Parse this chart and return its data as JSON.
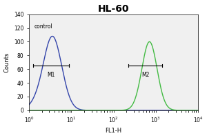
{
  "title": "HL-60",
  "xlabel": "FL1-H",
  "ylabel": "Counts",
  "ylim": [
    0,
    140
  ],
  "yticks": [
    0,
    20,
    40,
    60,
    80,
    100,
    120,
    140
  ],
  "xlim": [
    1.0,
    10000.0
  ],
  "control_label": "control",
  "m1_label": "M1",
  "m2_label": "M2",
  "blue_color": "#3344aa",
  "green_color": "#44bb44",
  "bg_color": "#f0f0f0",
  "blue_peak_log": 0.55,
  "blue_peak_y": 108,
  "blue_sigma": 0.22,
  "green_peak_log": 2.85,
  "green_peak_y": 100,
  "green_sigma": 0.18,
  "m1_x1_log": 0.1,
  "m1_x2_log": 0.95,
  "m1_y": 65,
  "m2_x1_log": 2.35,
  "m2_x2_log": 3.15,
  "m2_y": 65,
  "title_fontsize": 10,
  "label_fontsize": 6,
  "tick_fontsize": 5.5,
  "annotation_fontsize": 5.5
}
